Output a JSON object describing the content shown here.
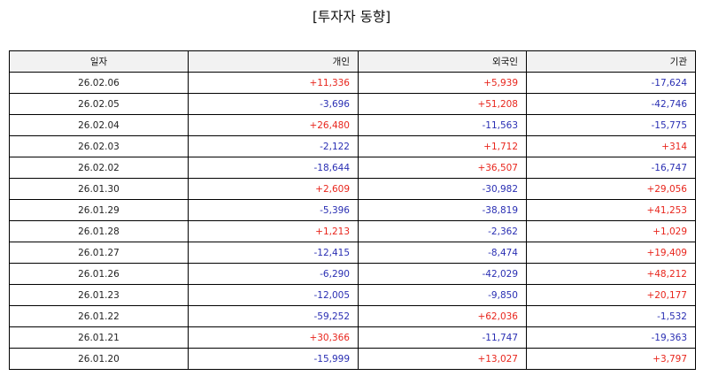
{
  "title": "[투자자 동향]",
  "chart_data": {
    "type": "table",
    "title": "[투자자 동향]",
    "columns": [
      "일자",
      "개인",
      "외국인",
      "기관"
    ],
    "rows": [
      [
        "26.02.06",
        "+11,336",
        "+5,939",
        "-17,624"
      ],
      [
        "26.02.05",
        "-3,696",
        "+51,208",
        "-42,746"
      ],
      [
        "26.02.04",
        "+26,480",
        "-11,563",
        "-15,775"
      ],
      [
        "26.02.03",
        "-2,122",
        "+1,712",
        "+314"
      ],
      [
        "26.02.02",
        "-18,644",
        "+36,507",
        "-16,747"
      ],
      [
        "26.01.30",
        "+2,609",
        "-30,982",
        "+29,056"
      ],
      [
        "26.01.29",
        "-5,396",
        "-38,819",
        "+41,253"
      ],
      [
        "26.01.28",
        "+1,213",
        "-2,362",
        "+1,029"
      ],
      [
        "26.01.27",
        "-12,415",
        "-8,474",
        "+19,409"
      ],
      [
        "26.01.26",
        "-6,290",
        "-42,029",
        "+48,212"
      ],
      [
        "26.01.23",
        "-12,005",
        "-9,850",
        "+20,177"
      ],
      [
        "26.01.22",
        "-59,252",
        "+62,036",
        "-1,532"
      ],
      [
        "26.01.21",
        "+30,366",
        "-11,747",
        "-19,363"
      ],
      [
        "26.01.20",
        "-15,999",
        "+13,027",
        "+3,797"
      ]
    ],
    "colors": {
      "positive": "#e8261d",
      "negative": "#2a2fb3",
      "header_background": "#f2f2f2",
      "border": "#000000"
    }
  }
}
